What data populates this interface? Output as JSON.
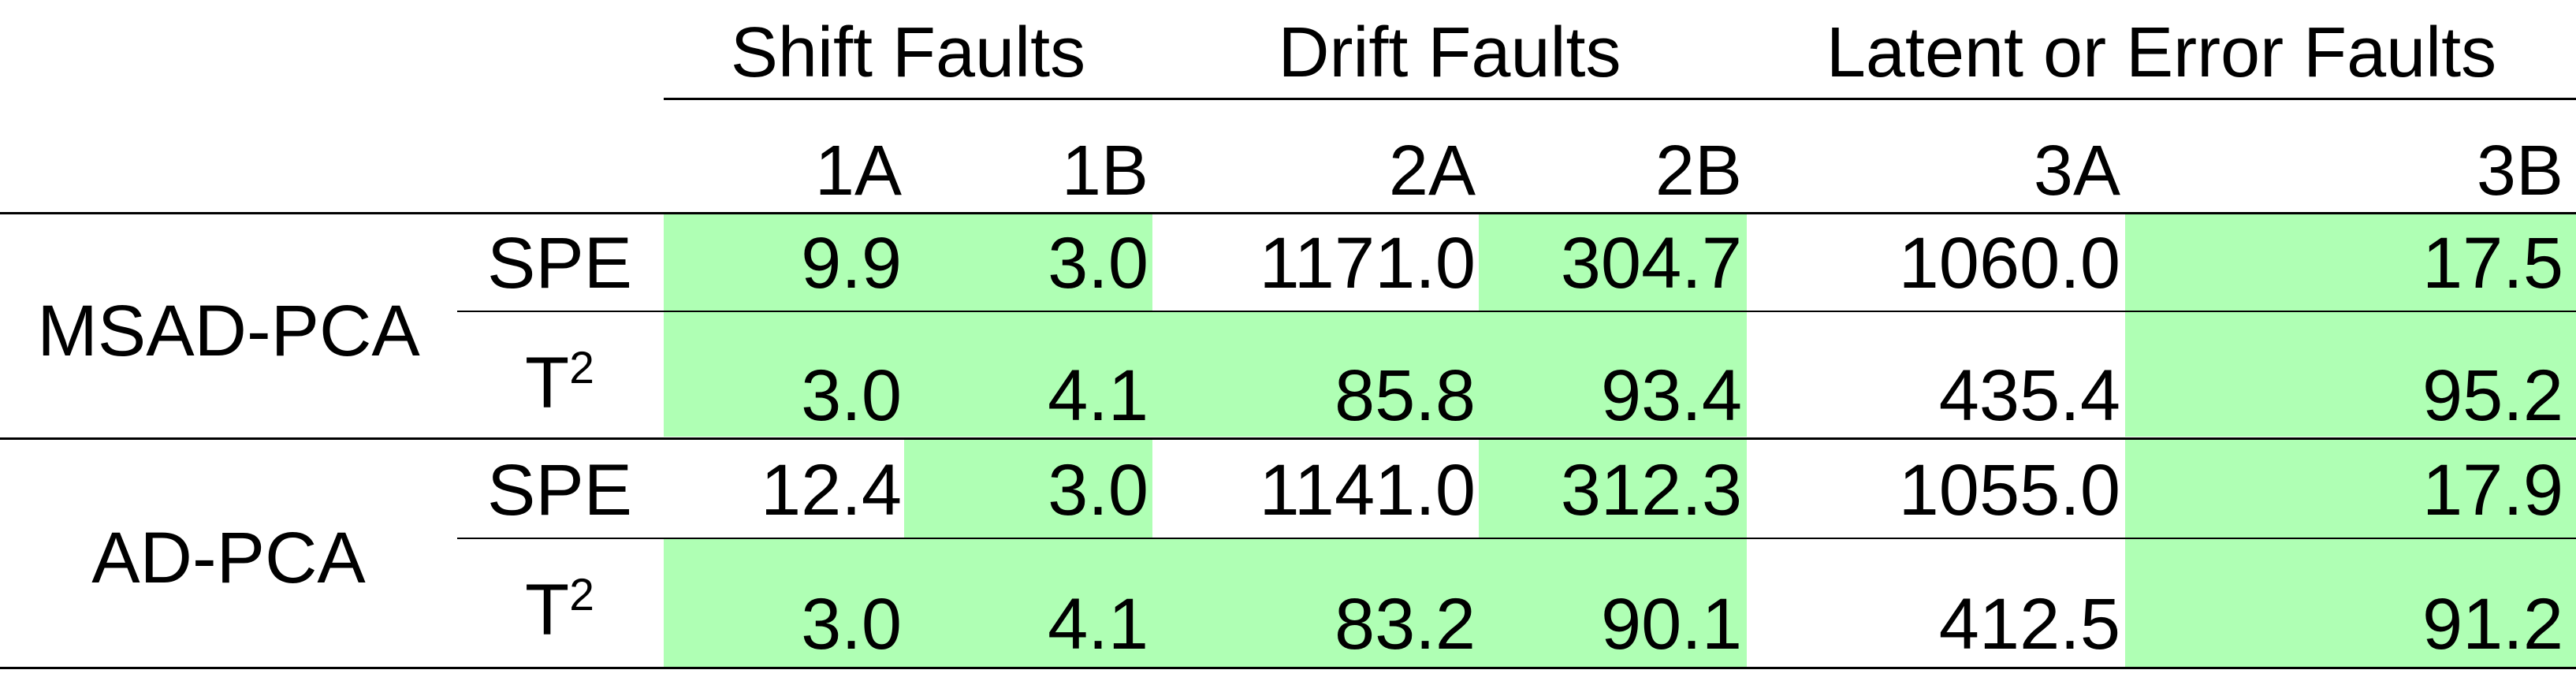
{
  "table": {
    "groups": [
      "Shift Faults",
      "Drift Faults",
      "Latent or Error Faults"
    ],
    "columns": [
      "1A",
      "1B",
      "2A",
      "2B",
      "3A",
      "3B"
    ],
    "methods": [
      {
        "name": "MSAD-PCA",
        "rows": [
          {
            "stat": "SPE",
            "stat_sup": "",
            "values": [
              "9.9",
              "3.0",
              "1171.0",
              "304.7",
              "1060.0",
              "17.5"
            ]
          },
          {
            "stat": "T",
            "stat_sup": "2",
            "values": [
              "3.0",
              "4.1",
              "85.8",
              "93.4",
              "435.4",
              "95.2"
            ]
          }
        ]
      },
      {
        "name": "AD-PCA",
        "rows": [
          {
            "stat": "SPE",
            "stat_sup": "",
            "values": [
              "12.4",
              "3.0",
              "1141.0",
              "312.3",
              "1055.0",
              "17.9"
            ]
          },
          {
            "stat": "T",
            "stat_sup": "2",
            "values": [
              "3.0",
              "4.1",
              "83.2",
              "90.1",
              "412.5",
              "91.2"
            ]
          }
        ]
      }
    ],
    "highlight_color": "#afffb4"
  }
}
